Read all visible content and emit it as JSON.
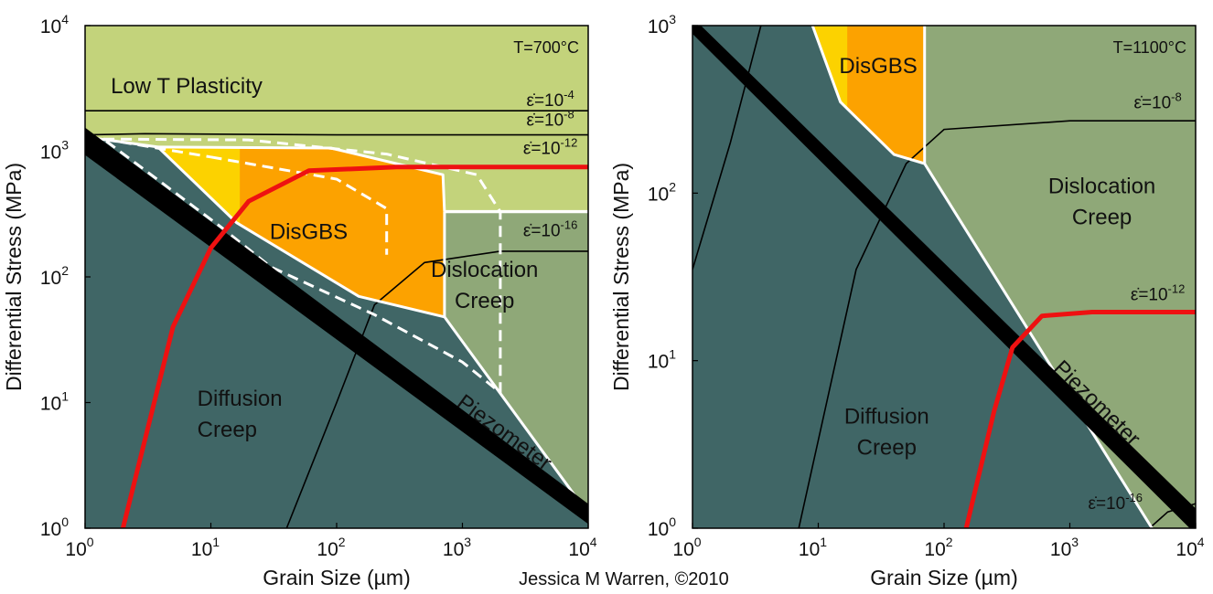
{
  "credit": "Jessica M Warren, ©2010",
  "colors": {
    "diffusion": "#406666",
    "dislocation": "#8fa878",
    "low_t": "#c3d37b",
    "disgbs_yellow": "#fcd200",
    "disgbs_orange": "#fca200",
    "strain_rate_red": "#ee1111",
    "boundary": "#ffffff",
    "piezometer": "#000000"
  },
  "chart_data": [
    {
      "type": "deformation-mechanism-map",
      "xlabel": "Grain Size (µm)",
      "ylabel": "Differential Stress (MPa)",
      "xscale": "log",
      "yscale": "log",
      "xlim": [
        1,
        10000
      ],
      "ylim": [
        1,
        10000
      ],
      "x_ticks": [
        "10",
        "10",
        "10",
        "10",
        "10"
      ],
      "x_tick_exp": [
        "0",
        "1",
        "2",
        "3",
        "4"
      ],
      "y_ticks": [
        "10",
        "10",
        "10",
        "10",
        "10"
      ],
      "y_tick_exp": [
        "0",
        "1",
        "2",
        "3",
        "4"
      ],
      "temperature_label": "T=700°C",
      "regions": [
        {
          "name": "Low T Plasticity",
          "lines": [
            "Low T Plasticity"
          ],
          "label_at": [
            1.6,
            2900
          ],
          "anchor": "start",
          "polygon": [
            [
              1,
              10000
            ],
            [
              10000,
              10000
            ],
            [
              10000,
              340
            ],
            [
              2000,
              340
            ],
            [
              720,
              340
            ],
            [
              720,
              330
            ],
            [
              1,
              1300
            ]
          ],
          "color": "low_t"
        },
        {
          "name": "DisGBS",
          "lines": [
            "DisGBS"
          ],
          "label_at": [
            60,
            200
          ],
          "anchor": "middle",
          "polygon": [
            [
              3.8,
              1080
            ],
            [
              90,
              1060
            ],
            [
              700,
              650
            ],
            [
              720,
              330
            ],
            [
              720,
              48
            ],
            [
              150,
              70
            ],
            [
              16,
              270
            ],
            [
              3.8,
              1080
            ]
          ],
          "color": "disgbs_orange"
        },
        {
          "name": "Dislocation Creep",
          "lines": [
            "Dislocation",
            "Creep"
          ],
          "label_at": [
            1500,
            100
          ],
          "anchor": "middle",
          "polygon": [
            [
              720,
              330
            ],
            [
              10000,
              330
            ],
            [
              10000,
              1.3
            ],
            [
              720,
              48
            ]
          ],
          "color": "dislocation"
        },
        {
          "name": "Diffusion Creep",
          "lines": [
            "Diffusion",
            "Creep"
          ],
          "label_at": [
            7.8,
            9.4
          ],
          "anchor": "start",
          "polygon": [
            [
              1,
              1
            ],
            [
              10000,
              1
            ],
            [
              10000,
              1.3
            ],
            [
              720,
              48
            ],
            [
              150,
              70
            ],
            [
              16,
              270
            ],
            [
              3.8,
              1080
            ],
            [
              1,
              1300
            ]
          ],
          "color": "diffusion"
        }
      ],
      "disgbs_yellow_limit_x": 17,
      "boundaries": [
        [
          [
            1,
            1300
          ],
          [
            3.8,
            1080
          ],
          [
            16,
            270
          ],
          [
            150,
            70
          ],
          [
            720,
            48
          ],
          [
            10000,
            1.3
          ]
        ],
        [
          [
            3.8,
            1080
          ],
          [
            90,
            1060
          ],
          [
            700,
            650
          ],
          [
            720,
            330
          ]
        ],
        [
          [
            720,
            330
          ],
          [
            720,
            48
          ]
        ],
        [
          [
            720,
            330
          ],
          [
            10000,
            330
          ]
        ]
      ],
      "dashed_boundaries": [
        [
          [
            1.4,
            1250
          ],
          [
            20,
            1230
          ],
          [
            250,
            950
          ],
          [
            1300,
            650
          ],
          [
            2000,
            330
          ],
          [
            2000,
            12
          ],
          [
            1000,
            21
          ],
          [
            200,
            50
          ],
          [
            30,
            120
          ],
          [
            12,
            250
          ],
          [
            1.4,
            1250
          ]
        ],
        [
          [
            10,
            900
          ],
          [
            100,
            600
          ],
          [
            250,
            350
          ],
          [
            250,
            150
          ]
        ],
        [
          [
            1.4,
            1250
          ],
          [
            10,
            900
          ]
        ]
      ],
      "strain_rate_lines": [
        {
          "label_exp": "-4",
          "color": "black",
          "points": [
            [
              1,
              2100
            ],
            [
              10000,
              2100
            ]
          ],
          "label_at": [
            5000,
            2300
          ]
        },
        {
          "label_exp": "-8",
          "color": "black",
          "points": [
            [
              1,
              1350
            ],
            [
              3,
              1380
            ],
            [
              100,
              1350
            ],
            [
              10000,
              1350
            ]
          ],
          "label_at": [
            5000,
            1600
          ]
        },
        {
          "label_exp": "-12",
          "color": "red",
          "points": [
            [
              2,
              1
            ],
            [
              5,
              40
            ],
            [
              10,
              170
            ],
            [
              20,
              400
            ],
            [
              60,
              700
            ],
            [
              300,
              750
            ],
            [
              10000,
              750
            ]
          ],
          "label_at": [
            5000,
            950
          ]
        },
        {
          "label_exp": "-16",
          "color": "black",
          "points": [
            [
              40,
              1
            ],
            [
              100,
              10
            ],
            [
              200,
              60
            ],
            [
              500,
              130
            ],
            [
              2000,
              160
            ],
            [
              10000,
              160
            ]
          ],
          "label_at": [
            5000,
            210
          ]
        }
      ],
      "piezometer": {
        "label": "Piezometer",
        "points": [
          [
            1,
            1200
          ],
          [
            10000,
            1.3
          ]
        ],
        "label_at": [
          2000,
          5.2
        ]
      }
    },
    {
      "type": "deformation-mechanism-map",
      "xlabel": "Grain Size (µm)",
      "ylabel": "Differential Stress (MPa)",
      "xscale": "log",
      "yscale": "log",
      "xlim": [
        1,
        10000
      ],
      "ylim": [
        1,
        1000
      ],
      "x_ticks": [
        "10",
        "10",
        "10",
        "10",
        "10"
      ],
      "x_tick_exp": [
        "0",
        "1",
        "2",
        "3",
        "4"
      ],
      "y_ticks": [
        "10",
        "10",
        "10",
        "10"
      ],
      "y_tick_exp": [
        "0",
        "1",
        "2",
        "3"
      ],
      "temperature_label": "T=1100°C",
      "regions": [
        {
          "name": "DisGBS",
          "lines": [
            "DisGBS"
          ],
          "label_at": [
            30,
            520
          ],
          "anchor": "middle",
          "polygon": [
            [
              9,
              1000
            ],
            [
              70,
              1000
            ],
            [
              70,
              150
            ],
            [
              40,
              170
            ],
            [
              15,
              350
            ],
            [
              9,
              1000
            ]
          ],
          "color": "disgbs_orange"
        },
        {
          "name": "Dislocation Creep",
          "lines": [
            "Dislocation",
            "Creep"
          ],
          "label_at": [
            1800,
            100
          ],
          "anchor": "middle",
          "polygon": [
            [
              70,
              1000
            ],
            [
              10000,
              1000
            ],
            [
              10000,
              1
            ],
            [
              4500,
              1
            ],
            [
              70,
              150
            ]
          ],
          "color": "dislocation"
        },
        {
          "name": "Diffusion Creep",
          "lines": [
            "Diffusion",
            "Creep"
          ],
          "label_at": [
            35,
            4.2
          ],
          "anchor": "middle",
          "polygon": [
            [
              1,
              1
            ],
            [
              4500,
              1
            ],
            [
              70,
              150
            ],
            [
              40,
              170
            ],
            [
              15,
              350
            ],
            [
              9,
              1000
            ],
            [
              1,
              1000
            ]
          ],
          "color": "diffusion"
        }
      ],
      "disgbs_yellow_limit_x": 17,
      "boundaries": [
        [
          [
            9,
            1000
          ],
          [
            15,
            350
          ],
          [
            40,
            170
          ],
          [
            70,
            150
          ],
          [
            4500,
            1
          ]
        ],
        [
          [
            70,
            1000
          ],
          [
            70,
            150
          ]
        ]
      ],
      "dashed_boundaries": [],
      "strain_rate_lines": [
        {
          "label_exp": "-8",
          "color": "black",
          "points": [
            [
              7,
              1
            ],
            [
              20,
              35
            ],
            [
              50,
              150
            ],
            [
              100,
              240
            ],
            [
              1000,
              270
            ],
            [
              10000,
              270
            ]
          ],
          "label_at": [
            5000,
            320
          ]
        },
        {
          "label_exp": "-12",
          "color": "red",
          "points": [
            [
              150,
              1
            ],
            [
              250,
              5
            ],
            [
              350,
              12
            ],
            [
              600,
              18.5
            ],
            [
              1500,
              19.5
            ],
            [
              10000,
              19.5
            ]
          ],
          "label_at": [
            5000,
            23
          ]
        },
        {
          "label_exp": "-16",
          "color": "black",
          "points": [
            [
              4300,
              1
            ],
            [
              6000,
              1.25
            ],
            [
              10000,
              1.4
            ]
          ],
          "label_at": [
            2300,
            1.3
          ]
        },
        {
          "label_exp": "",
          "color": "black",
          "points": [
            [
              1,
              35
            ],
            [
              2,
              200
            ],
            [
              3.5,
              1000
            ]
          ],
          "label_at": null
        }
      ],
      "piezometer": {
        "label": "Piezometer",
        "points": [
          [
            1,
            1000
          ],
          [
            10000,
            1.1
          ]
        ],
        "label_at": [
          1500,
          5.2
        ]
      }
    }
  ]
}
